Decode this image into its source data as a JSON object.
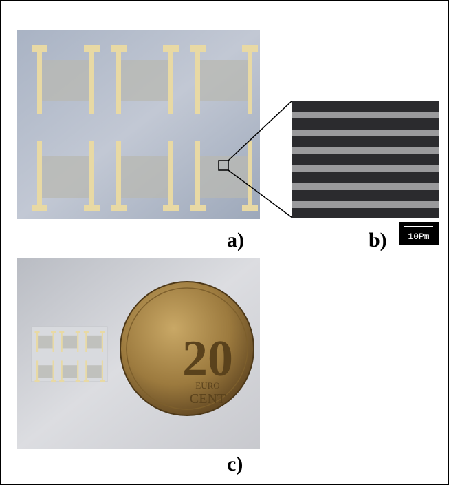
{
  "panels": {
    "a": {
      "label": "a)"
    },
    "b": {
      "label": "b)",
      "scale_bar": "10Pm"
    },
    "c": {
      "label": "c)",
      "coin": {
        "value": "20",
        "top": "EURO",
        "bottom": "CENT"
      }
    }
  }
}
